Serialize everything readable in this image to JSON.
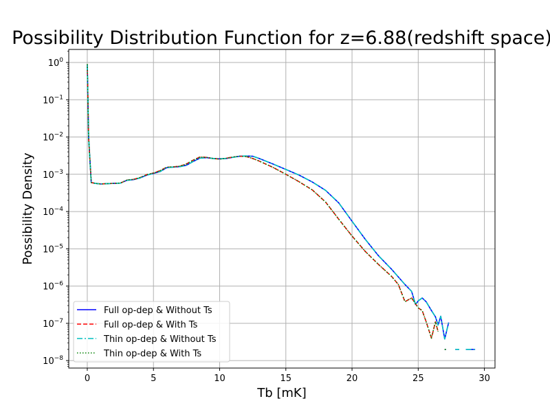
{
  "chart_data": {
    "type": "line",
    "title": "Possibility Distribution Function for z=6.88(redshift space)",
    "xlabel": "Tb [mK]",
    "ylabel": "Possibility Density",
    "xlim": [
      -1.4,
      30.8
    ],
    "ylim_log10": [
      -8.2,
      0.35
    ],
    "y_scale": "log",
    "x_ticks": [
      0,
      5,
      10,
      15,
      20,
      25,
      30
    ],
    "x_tick_labels": [
      "0",
      "5",
      "10",
      "15",
      "20",
      "25",
      "30"
    ],
    "y_ticks_log10": [
      0,
      -1,
      -2,
      -3,
      -4,
      -5,
      -6,
      -7,
      -8
    ],
    "y_tick_labels": [
      {
        "base": "10",
        "exp": "0"
      },
      {
        "base": "10",
        "exp": "−1"
      },
      {
        "base": "10",
        "exp": "−2"
      },
      {
        "base": "10",
        "exp": "−3"
      },
      {
        "base": "10",
        "exp": "−4"
      },
      {
        "base": "10",
        "exp": "−5"
      },
      {
        "base": "10",
        "exp": "−6"
      },
      {
        "base": "10",
        "exp": "−7"
      },
      {
        "base": "10",
        "exp": "−8"
      }
    ],
    "grid": true,
    "legend_position": "lower-left",
    "series": [
      {
        "name": "Full op-dep & Without Ts",
        "color": "#0000ff",
        "style": "solid",
        "segments": [
          [
            [
              0,
              0.9
            ],
            [
              0.1,
              0.01
            ],
            [
              0.3,
              0.0006
            ],
            [
              0.6,
              0.00057
            ],
            [
              1,
              0.00055
            ],
            [
              1.5,
              0.00056
            ],
            [
              2,
              0.00057
            ],
            [
              2.5,
              0.00058
            ],
            [
              3,
              0.00069
            ],
            [
              3.5,
              0.00072
            ],
            [
              4,
              0.0008
            ],
            [
              4.5,
              0.00095
            ],
            [
              5,
              0.00105
            ],
            [
              5.5,
              0.00118
            ],
            [
              6,
              0.0015
            ],
            [
              6.5,
              0.00156
            ],
            [
              7,
              0.0016
            ],
            [
              7.5,
              0.00175
            ],
            [
              8,
              0.0022
            ],
            [
              8.5,
              0.0027
            ],
            [
              9,
              0.0028
            ],
            [
              9.5,
              0.00265
            ],
            [
              10,
              0.0026
            ],
            [
              10.5,
              0.00265
            ],
            [
              11,
              0.00285
            ],
            [
              11.5,
              0.00305
            ],
            [
              12,
              0.0031
            ],
            [
              12.5,
              0.00305
            ],
            [
              13,
              0.00265
            ],
            [
              14,
              0.0019
            ],
            [
              15,
              0.00135
            ],
            [
              16,
              0.00095
            ],
            [
              17,
              0.00062
            ],
            [
              18,
              0.00037
            ],
            [
              19,
              0.00017
            ],
            [
              20,
              5.5e-05
            ],
            [
              21,
              1.8e-05
            ],
            [
              22,
              6.5e-06
            ],
            [
              23,
              2.8e-06
            ],
            [
              24,
              1.1e-06
            ],
            [
              24.5,
              7.2e-07
            ],
            [
              24.8,
              3.2e-07
            ],
            [
              25,
              4e-07
            ],
            [
              25.3,
              4.8e-07
            ],
            [
              25.6,
              3.8e-07
            ],
            [
              26,
              2.2e-07
            ],
            [
              26.3,
              1.5e-07
            ],
            [
              26.5,
              9e-08
            ],
            [
              26.7,
              1.55e-07
            ],
            [
              27,
              3.8e-08
            ],
            [
              27.3,
              1.05e-07
            ]
          ],
          [
            [
              27,
              2e-08
            ],
            [
              27.1,
              2e-08
            ]
          ],
          [
            [
              27.8,
              2e-08
            ],
            [
              28.1,
              2e-08
            ]
          ],
          [
            [
              28.6,
              2e-08
            ],
            [
              29.3,
              2e-08
            ]
          ]
        ]
      },
      {
        "name": "Full op-dep & With Ts",
        "color": "#ff0000",
        "style": "dashed",
        "segments": [
          [
            [
              0,
              0.9
            ],
            [
              0.1,
              0.01
            ],
            [
              0.3,
              0.0006
            ],
            [
              0.6,
              0.00057
            ],
            [
              1,
              0.00055
            ],
            [
              1.5,
              0.00056
            ],
            [
              2,
              0.00057
            ],
            [
              2.5,
              0.00058
            ],
            [
              3,
              0.0007
            ],
            [
              3.5,
              0.00073
            ],
            [
              4,
              0.00082
            ],
            [
              4.5,
              0.00098
            ],
            [
              5,
              0.00108
            ],
            [
              5.5,
              0.00125
            ],
            [
              6,
              0.00155
            ],
            [
              6.5,
              0.00158
            ],
            [
              7,
              0.00165
            ],
            [
              7.5,
              0.0019
            ],
            [
              8,
              0.0024
            ],
            [
              8.5,
              0.0029
            ],
            [
              9,
              0.00285
            ],
            [
              9.5,
              0.00265
            ],
            [
              10,
              0.00255
            ],
            [
              10.5,
              0.0027
            ],
            [
              11,
              0.0029
            ],
            [
              11.5,
              0.00305
            ],
            [
              12,
              0.003
            ],
            [
              12.5,
              0.00265
            ],
            [
              13,
              0.00225
            ],
            [
              14,
              0.00155
            ],
            [
              15,
              0.001
            ],
            [
              16,
              0.00063
            ],
            [
              17,
              0.00038
            ],
            [
              18,
              0.00018
            ],
            [
              19,
              6.2e-05
            ],
            [
              20,
              2.2e-05
            ],
            [
              21,
              8.5e-06
            ],
            [
              22,
              3.8e-06
            ],
            [
              23,
              1.8e-06
            ],
            [
              23.5,
              1.1e-06
            ],
            [
              24,
              3.8e-07
            ],
            [
              24.5,
              4.8e-07
            ],
            [
              25,
              2.6e-07
            ],
            [
              25.3,
              2.2e-07
            ],
            [
              25.6,
              1.1e-07
            ],
            [
              26,
              4e-08
            ],
            [
              26.3,
              1.1e-07
            ],
            [
              26.5,
              6e-08
            ]
          ],
          [
            [
              27,
              2e-08
            ],
            [
              27.1,
              2e-08
            ]
          ]
        ]
      },
      {
        "name": "Thin op-dep & Without Ts",
        "color": "#00bfbf",
        "style": "dashdot",
        "segments": [
          [
            [
              0,
              0.9
            ],
            [
              0.1,
              0.01
            ],
            [
              0.3,
              0.0006
            ],
            [
              0.6,
              0.00057
            ],
            [
              1,
              0.00055
            ],
            [
              1.5,
              0.00056
            ],
            [
              2,
              0.00057
            ],
            [
              2.5,
              0.00058
            ],
            [
              3,
              0.00069
            ],
            [
              3.5,
              0.00072
            ],
            [
              4,
              0.0008
            ],
            [
              4.5,
              0.00095
            ],
            [
              5,
              0.00105
            ],
            [
              5.5,
              0.00118
            ],
            [
              6,
              0.0015
            ],
            [
              6.5,
              0.00156
            ],
            [
              7,
              0.0016
            ],
            [
              7.5,
              0.00175
            ],
            [
              8,
              0.0022
            ],
            [
              8.5,
              0.0027
            ],
            [
              9,
              0.0028
            ],
            [
              9.5,
              0.00265
            ],
            [
              10,
              0.0026
            ],
            [
              10.5,
              0.00265
            ],
            [
              11,
              0.00285
            ],
            [
              11.5,
              0.00305
            ],
            [
              12,
              0.0031
            ],
            [
              12.5,
              0.00305
            ],
            [
              13,
              0.00265
            ],
            [
              14,
              0.0019
            ],
            [
              15,
              0.00135
            ],
            [
              16,
              0.00095
            ],
            [
              17,
              0.00062
            ],
            [
              18,
              0.00037
            ],
            [
              19,
              0.00017
            ],
            [
              20,
              5.5e-05
            ],
            [
              21,
              1.8e-05
            ],
            [
              22,
              6.5e-06
            ],
            [
              23,
              2.8e-06
            ],
            [
              24,
              1.1e-06
            ],
            [
              24.5,
              7.2e-07
            ],
            [
              24.8,
              3.2e-07
            ],
            [
              25,
              4e-07
            ],
            [
              25.3,
              4.8e-07
            ],
            [
              25.6,
              3.8e-07
            ],
            [
              26,
              2.2e-07
            ],
            [
              26.3,
              1.5e-07
            ],
            [
              26.5,
              9e-08
            ],
            [
              26.7,
              1.55e-07
            ],
            [
              27,
              3.8e-08
            ],
            [
              27.3,
              1.05e-07
            ]
          ],
          [
            [
              27,
              2e-08
            ],
            [
              27.1,
              2e-08
            ]
          ],
          [
            [
              27.8,
              2e-08
            ],
            [
              28.1,
              2e-08
            ]
          ],
          [
            [
              28.6,
              2e-08
            ],
            [
              29.3,
              2e-08
            ]
          ]
        ]
      },
      {
        "name": "Thin op-dep & With Ts",
        "color": "#008000",
        "style": "dotted",
        "segments": [
          [
            [
              0,
              0.9
            ],
            [
              0.1,
              0.01
            ],
            [
              0.3,
              0.0006
            ],
            [
              0.6,
              0.00057
            ],
            [
              1,
              0.00055
            ],
            [
              1.5,
              0.00056
            ],
            [
              2,
              0.00057
            ],
            [
              2.5,
              0.00058
            ],
            [
              3,
              0.0007
            ],
            [
              3.5,
              0.00073
            ],
            [
              4,
              0.00082
            ],
            [
              4.5,
              0.00098
            ],
            [
              5,
              0.00108
            ],
            [
              5.5,
              0.00125
            ],
            [
              6,
              0.00155
            ],
            [
              6.5,
              0.00158
            ],
            [
              7,
              0.00165
            ],
            [
              7.5,
              0.0019
            ],
            [
              8,
              0.0024
            ],
            [
              8.5,
              0.0029
            ],
            [
              9,
              0.00285
            ],
            [
              9.5,
              0.00265
            ],
            [
              10,
              0.00255
            ],
            [
              10.5,
              0.0027
            ],
            [
              11,
              0.0029
            ],
            [
              11.5,
              0.00305
            ],
            [
              12,
              0.003
            ],
            [
              12.5,
              0.00265
            ],
            [
              13,
              0.00225
            ],
            [
              14,
              0.00155
            ],
            [
              15,
              0.001
            ],
            [
              16,
              0.00063
            ],
            [
              17,
              0.00038
            ],
            [
              18,
              0.00018
            ],
            [
              19,
              6.2e-05
            ],
            [
              20,
              2.2e-05
            ],
            [
              21,
              8.5e-06
            ],
            [
              22,
              3.8e-06
            ],
            [
              23,
              1.8e-06
            ],
            [
              23.5,
              1.1e-06
            ],
            [
              24,
              3.8e-07
            ],
            [
              24.5,
              4.8e-07
            ],
            [
              25,
              2.6e-07
            ],
            [
              25.3,
              2.2e-07
            ],
            [
              25.6,
              1.1e-07
            ],
            [
              26,
              4e-08
            ],
            [
              26.3,
              1.1e-07
            ],
            [
              26.5,
              6e-08
            ]
          ],
          [
            [
              27,
              2e-08
            ],
            [
              27.1,
              2e-08
            ]
          ]
        ]
      }
    ]
  }
}
